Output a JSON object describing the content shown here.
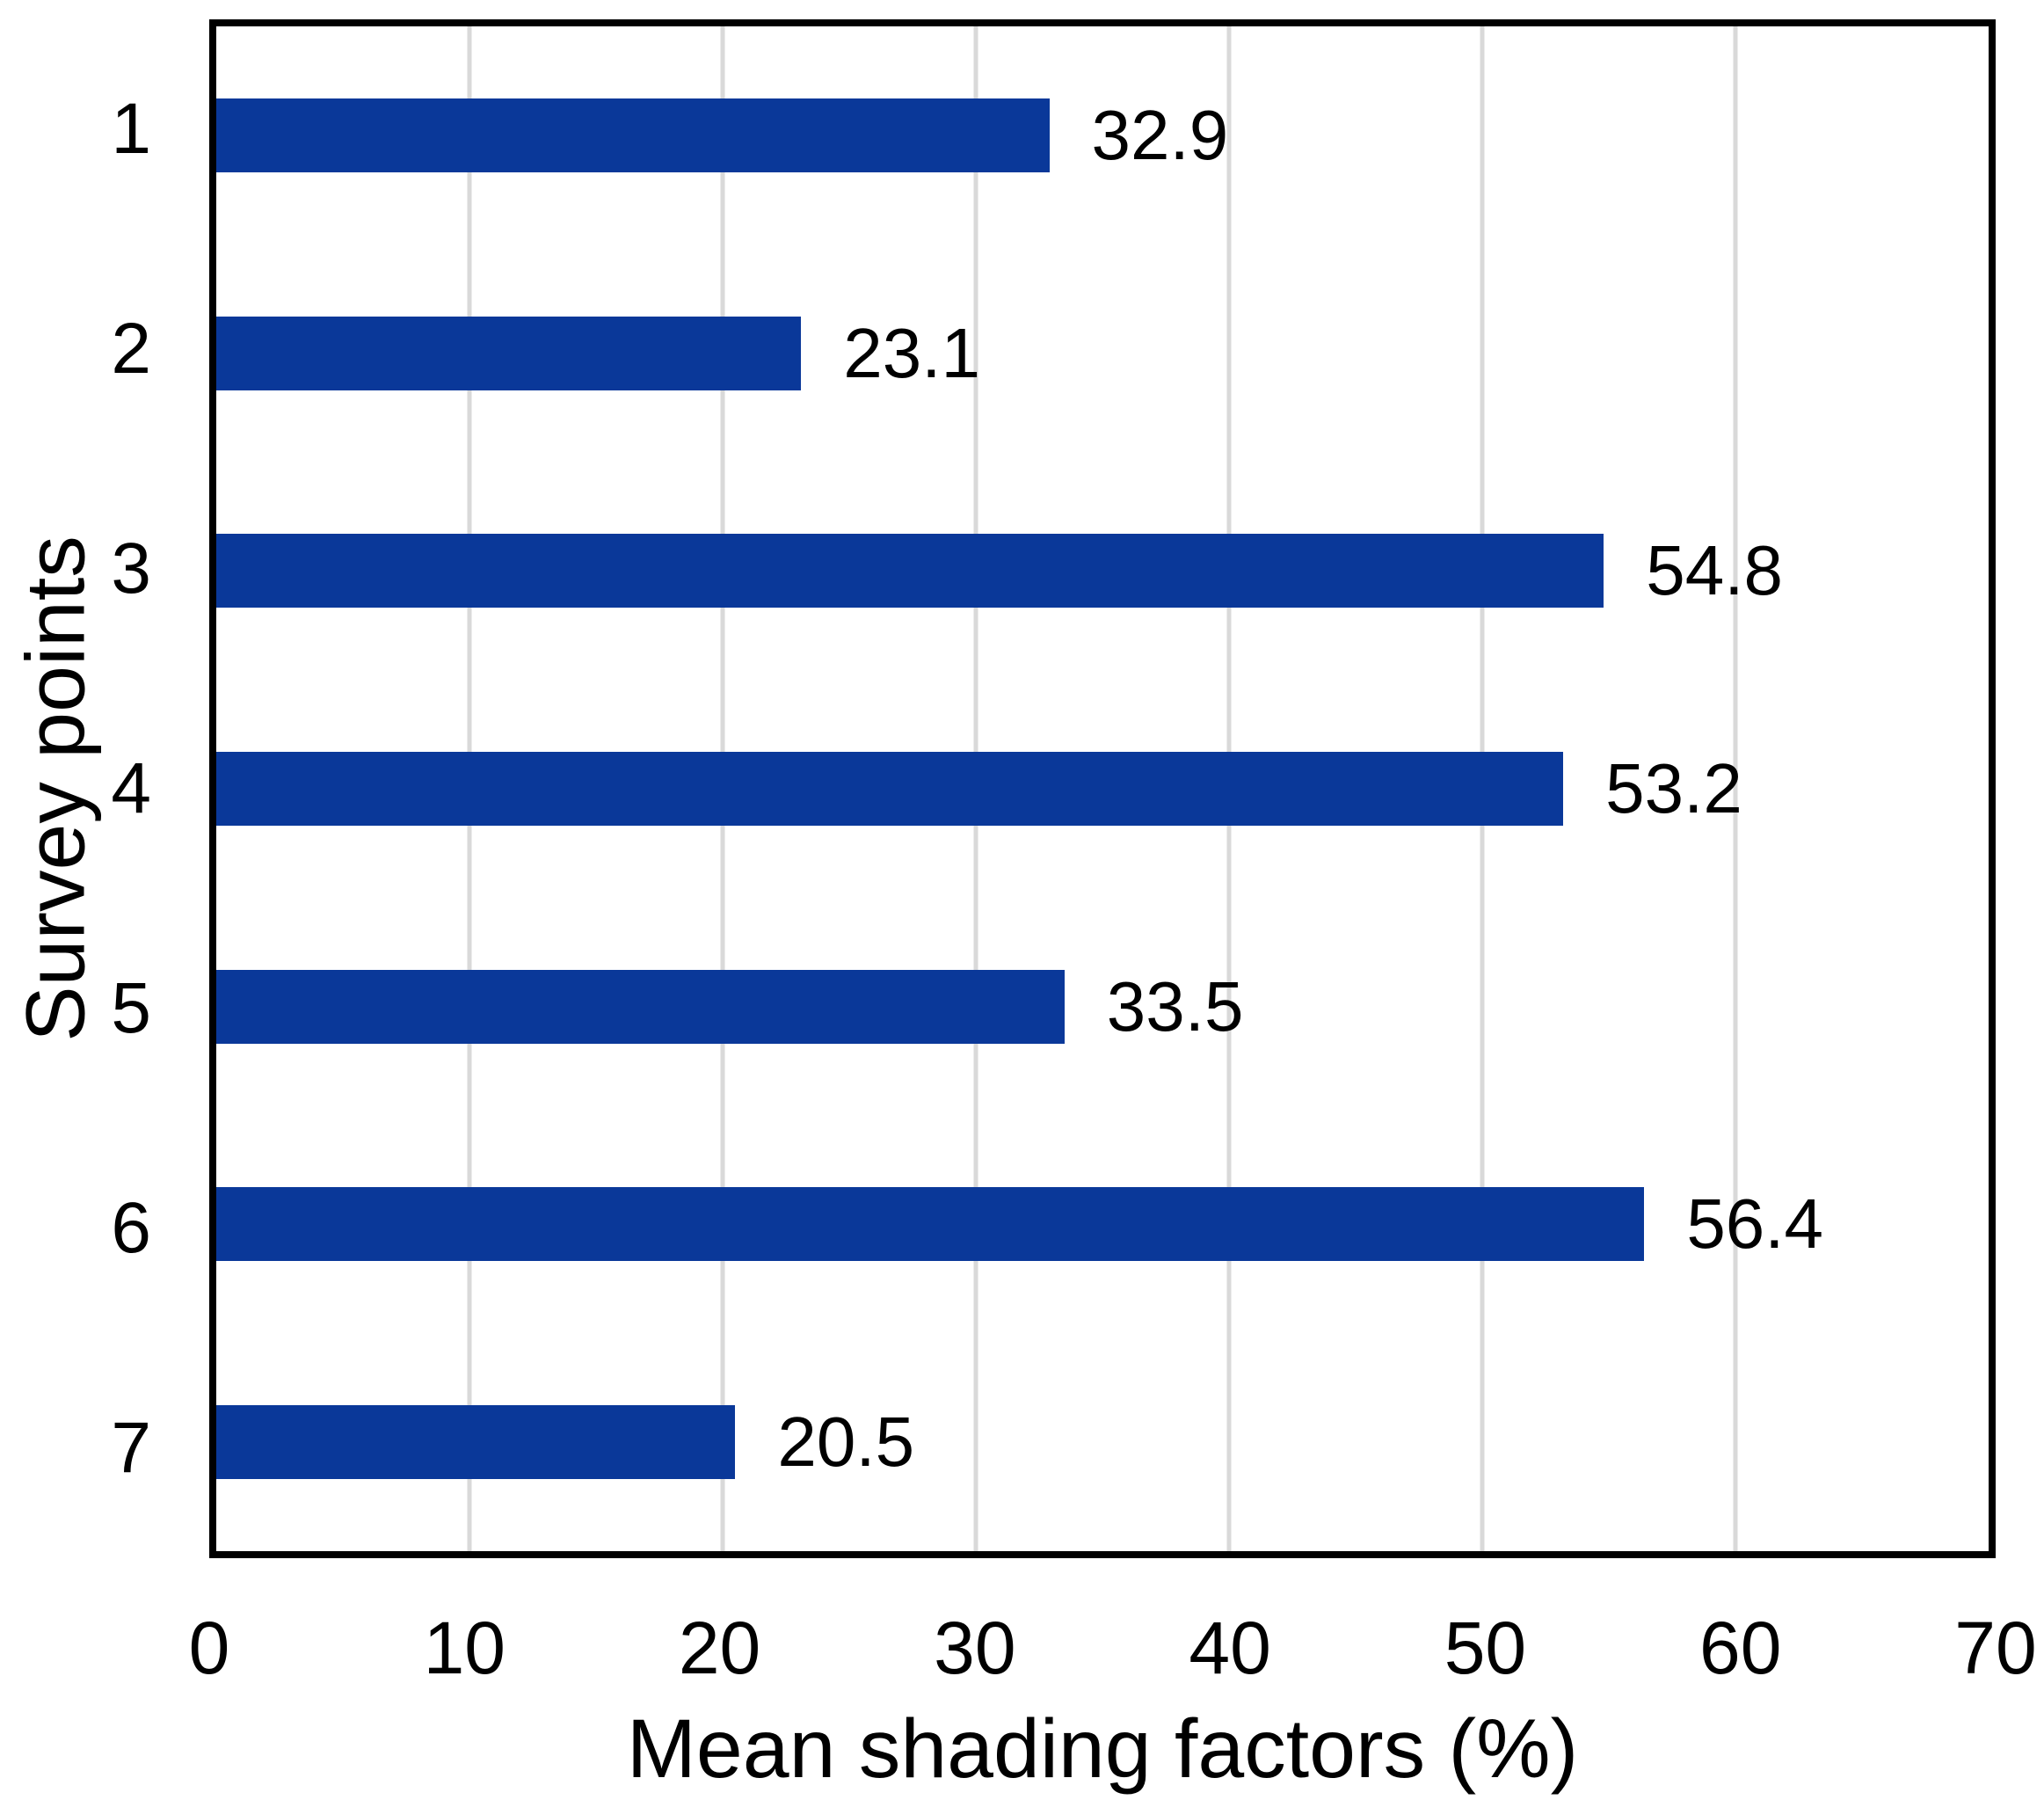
{
  "chart_data": {
    "type": "bar",
    "orientation": "horizontal",
    "title": "",
    "xlabel": "Mean shading factors (%)",
    "ylabel": "Survey points",
    "categories": [
      "1",
      "2",
      "3",
      "4",
      "5",
      "6",
      "7"
    ],
    "values": [
      32.9,
      23.1,
      54.8,
      53.2,
      33.5,
      56.4,
      20.5
    ],
    "value_labels": [
      "32.9",
      "23.1",
      "54.8",
      "53.2",
      "33.5",
      "56.4",
      "20.5"
    ],
    "xlim": [
      0,
      70
    ],
    "x_ticks": [
      0,
      10,
      20,
      30,
      40,
      50,
      60,
      70
    ],
    "grid": "vertical",
    "legend": "none",
    "colors": {
      "bar": "#0a3899",
      "gridline": "#d9d9d9",
      "plot_border": "#000000",
      "text": "#000000",
      "background": "#ffffff"
    }
  }
}
